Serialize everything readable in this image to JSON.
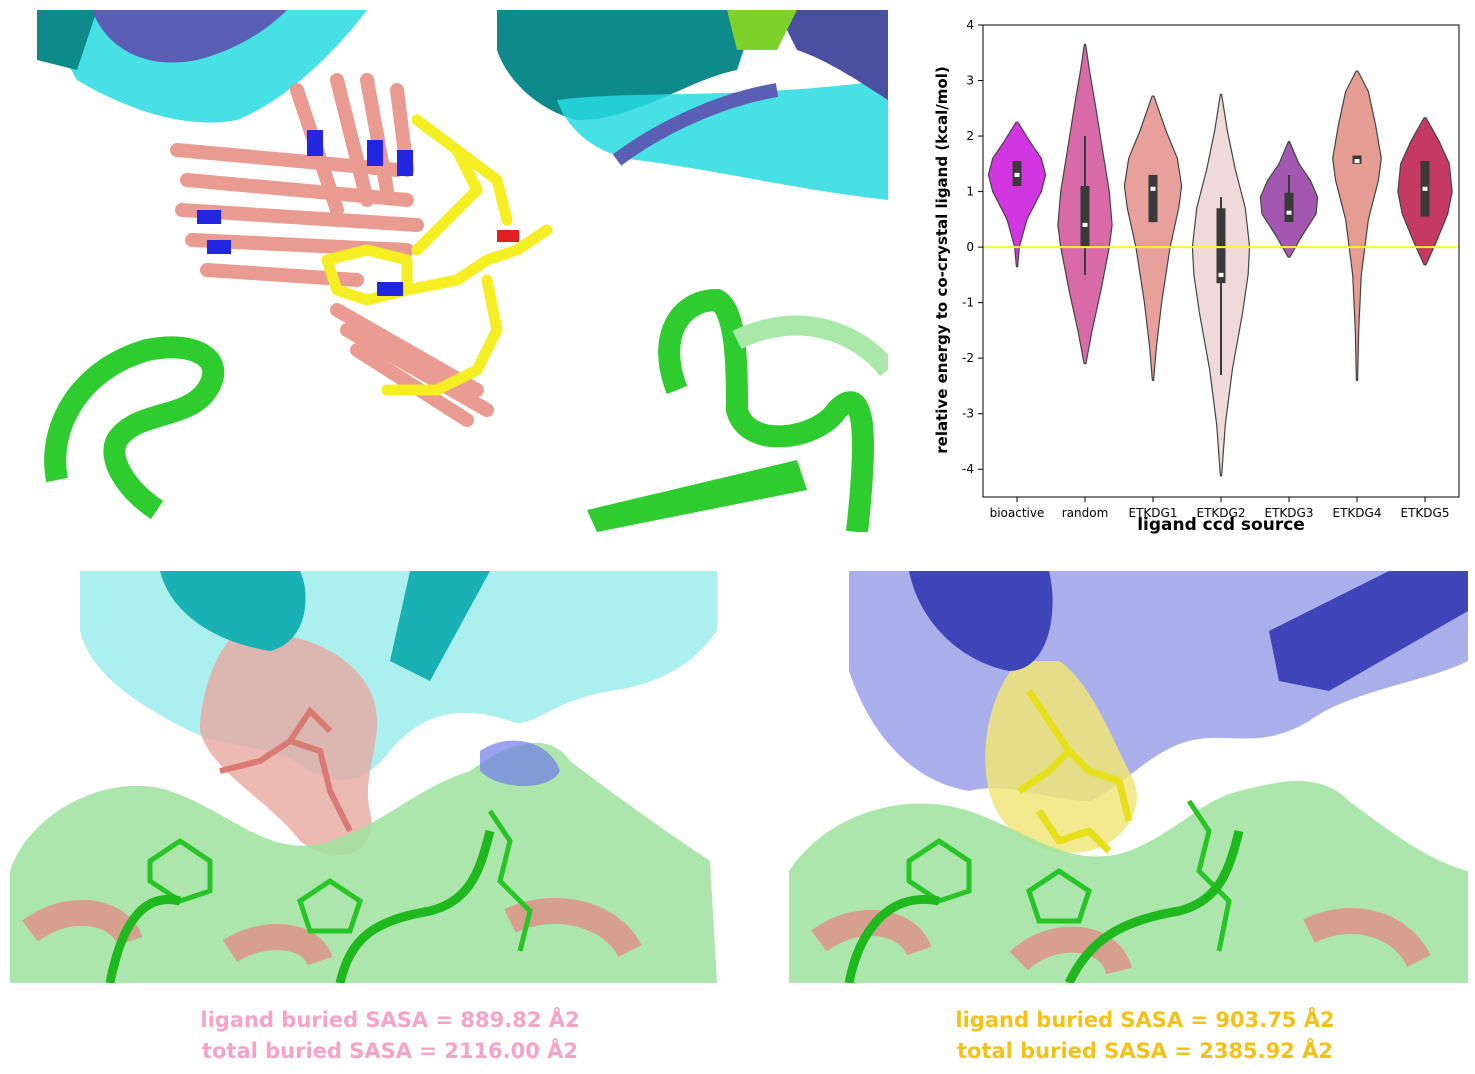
{
  "figure": {
    "left_caption": {
      "line1": "ligand buried SASA = 889.82 Å2",
      "line2": "total buried SASA = 2116.00 Å2",
      "color": "#f5a3c7"
    },
    "right_caption": {
      "line1": "ligand buried SASA = 903.75 Å2",
      "line2": "total buried SASA = 2385.92 Å2",
      "color": "#f2c21b"
    }
  },
  "colors": {
    "salmon_ligand": "#e8958c",
    "yellow_ligand": "#f4ee22",
    "cyan_protein": "#27dbe0",
    "teal_protein": "#0f8a8a",
    "slate_protein": "#5a5fb5",
    "green_protein": "#2ecc2e",
    "nitrogen": "#2326e0",
    "oxygen": "#e02020"
  },
  "chart_data": {
    "type": "violin",
    "xlabel": "ligand ccd source",
    "ylabel": "relative energy to co-crystal ligand (kcal/mol)",
    "categories": [
      "bioactive",
      "random",
      "ETKDG1",
      "ETKDG2",
      "ETKDG3",
      "ETKDG4",
      "ETKDG5"
    ],
    "colors": [
      "#d236e0",
      "#d96aa8",
      "#e8a09d",
      "#efd9d9",
      "#a357b0",
      "#e59c92",
      "#c53a62"
    ],
    "ylim": [
      -4.5,
      4
    ],
    "yticks": [
      -4,
      -3,
      -2,
      -1,
      0,
      1,
      2,
      3,
      4
    ],
    "reference_line": {
      "y": 0,
      "color": "#f7f72a"
    },
    "violins": [
      {
        "min": -0.35,
        "max": 2.25,
        "q1": 1.1,
        "median": 1.3,
        "q3": 1.55,
        "whisker_low": 1.1,
        "whisker_high": 1.55,
        "profile": [
          [
            -0.35,
            0.02
          ],
          [
            0,
            0.08
          ],
          [
            0.5,
            0.35
          ],
          [
            1.0,
            0.85
          ],
          [
            1.3,
            1.0
          ],
          [
            1.6,
            0.85
          ],
          [
            1.9,
            0.45
          ],
          [
            2.25,
            0.03
          ]
        ]
      },
      {
        "min": -2.1,
        "max": 3.65,
        "q1": 0.0,
        "median": 0.4,
        "q3": 1.1,
        "whisker_low": -0.5,
        "whisker_high": 2.0,
        "profile": [
          [
            -2.1,
            0.03
          ],
          [
            -1.5,
            0.25
          ],
          [
            -0.8,
            0.55
          ],
          [
            0,
            0.85
          ],
          [
            0.4,
            0.95
          ],
          [
            1.0,
            0.85
          ],
          [
            1.8,
            0.6
          ],
          [
            2.6,
            0.35
          ],
          [
            3.2,
            0.15
          ],
          [
            3.65,
            0.02
          ]
        ]
      },
      {
        "min": -2.4,
        "max": 2.72,
        "q1": 0.45,
        "median": 1.05,
        "q3": 1.3,
        "whisker_low": 0.45,
        "whisker_high": 1.3,
        "profile": [
          [
            -2.4,
            0.02
          ],
          [
            -1.8,
            0.12
          ],
          [
            -1.0,
            0.3
          ],
          [
            0,
            0.6
          ],
          [
            0.7,
            0.9
          ],
          [
            1.1,
            1.0
          ],
          [
            1.6,
            0.85
          ],
          [
            2.1,
            0.45
          ],
          [
            2.72,
            0.03
          ]
        ]
      },
      {
        "min": -4.12,
        "max": 2.75,
        "q1": -0.65,
        "median": -0.5,
        "q3": 0.7,
        "whisker_low": -2.3,
        "whisker_high": 0.9,
        "profile": [
          [
            -4.12,
            0.02
          ],
          [
            -3.2,
            0.15
          ],
          [
            -2.2,
            0.4
          ],
          [
            -1.2,
            0.75
          ],
          [
            -0.5,
            0.95
          ],
          [
            0,
            1.0
          ],
          [
            0.7,
            0.85
          ],
          [
            1.4,
            0.5
          ],
          [
            2.1,
            0.22
          ],
          [
            2.75,
            0.02
          ]
        ]
      },
      {
        "min": -0.18,
        "max": 1.9,
        "q1": 0.45,
        "median": 0.62,
        "q3": 0.98,
        "whisker_low": 0.45,
        "whisker_high": 1.3,
        "profile": [
          [
            -0.18,
            0.03
          ],
          [
            0.2,
            0.45
          ],
          [
            0.6,
            0.95
          ],
          [
            0.9,
            1.0
          ],
          [
            1.2,
            0.75
          ],
          [
            1.5,
            0.35
          ],
          [
            1.9,
            0.02
          ]
        ]
      },
      {
        "min": -2.4,
        "max": 3.17,
        "q1": 1.5,
        "median": 1.55,
        "q3": 1.65,
        "whisker_low": 1.5,
        "whisker_high": 1.65,
        "profile": [
          [
            -2.4,
            0.02
          ],
          [
            -1.5,
            0.06
          ],
          [
            -0.5,
            0.15
          ],
          [
            0.5,
            0.4
          ],
          [
            1.2,
            0.75
          ],
          [
            1.6,
            0.85
          ],
          [
            2.2,
            0.65
          ],
          [
            2.8,
            0.4
          ],
          [
            3.17,
            0.03
          ]
        ]
      },
      {
        "min": -0.32,
        "max": 2.33,
        "q1": 0.55,
        "median": 1.05,
        "q3": 1.55,
        "whisker_low": 0.55,
        "whisker_high": 1.55,
        "profile": [
          [
            -0.32,
            0.03
          ],
          [
            0.1,
            0.4
          ],
          [
            0.6,
            0.8
          ],
          [
            1.0,
            0.95
          ],
          [
            1.5,
            0.85
          ],
          [
            1.9,
            0.5
          ],
          [
            2.33,
            0.03
          ]
        ]
      }
    ]
  }
}
